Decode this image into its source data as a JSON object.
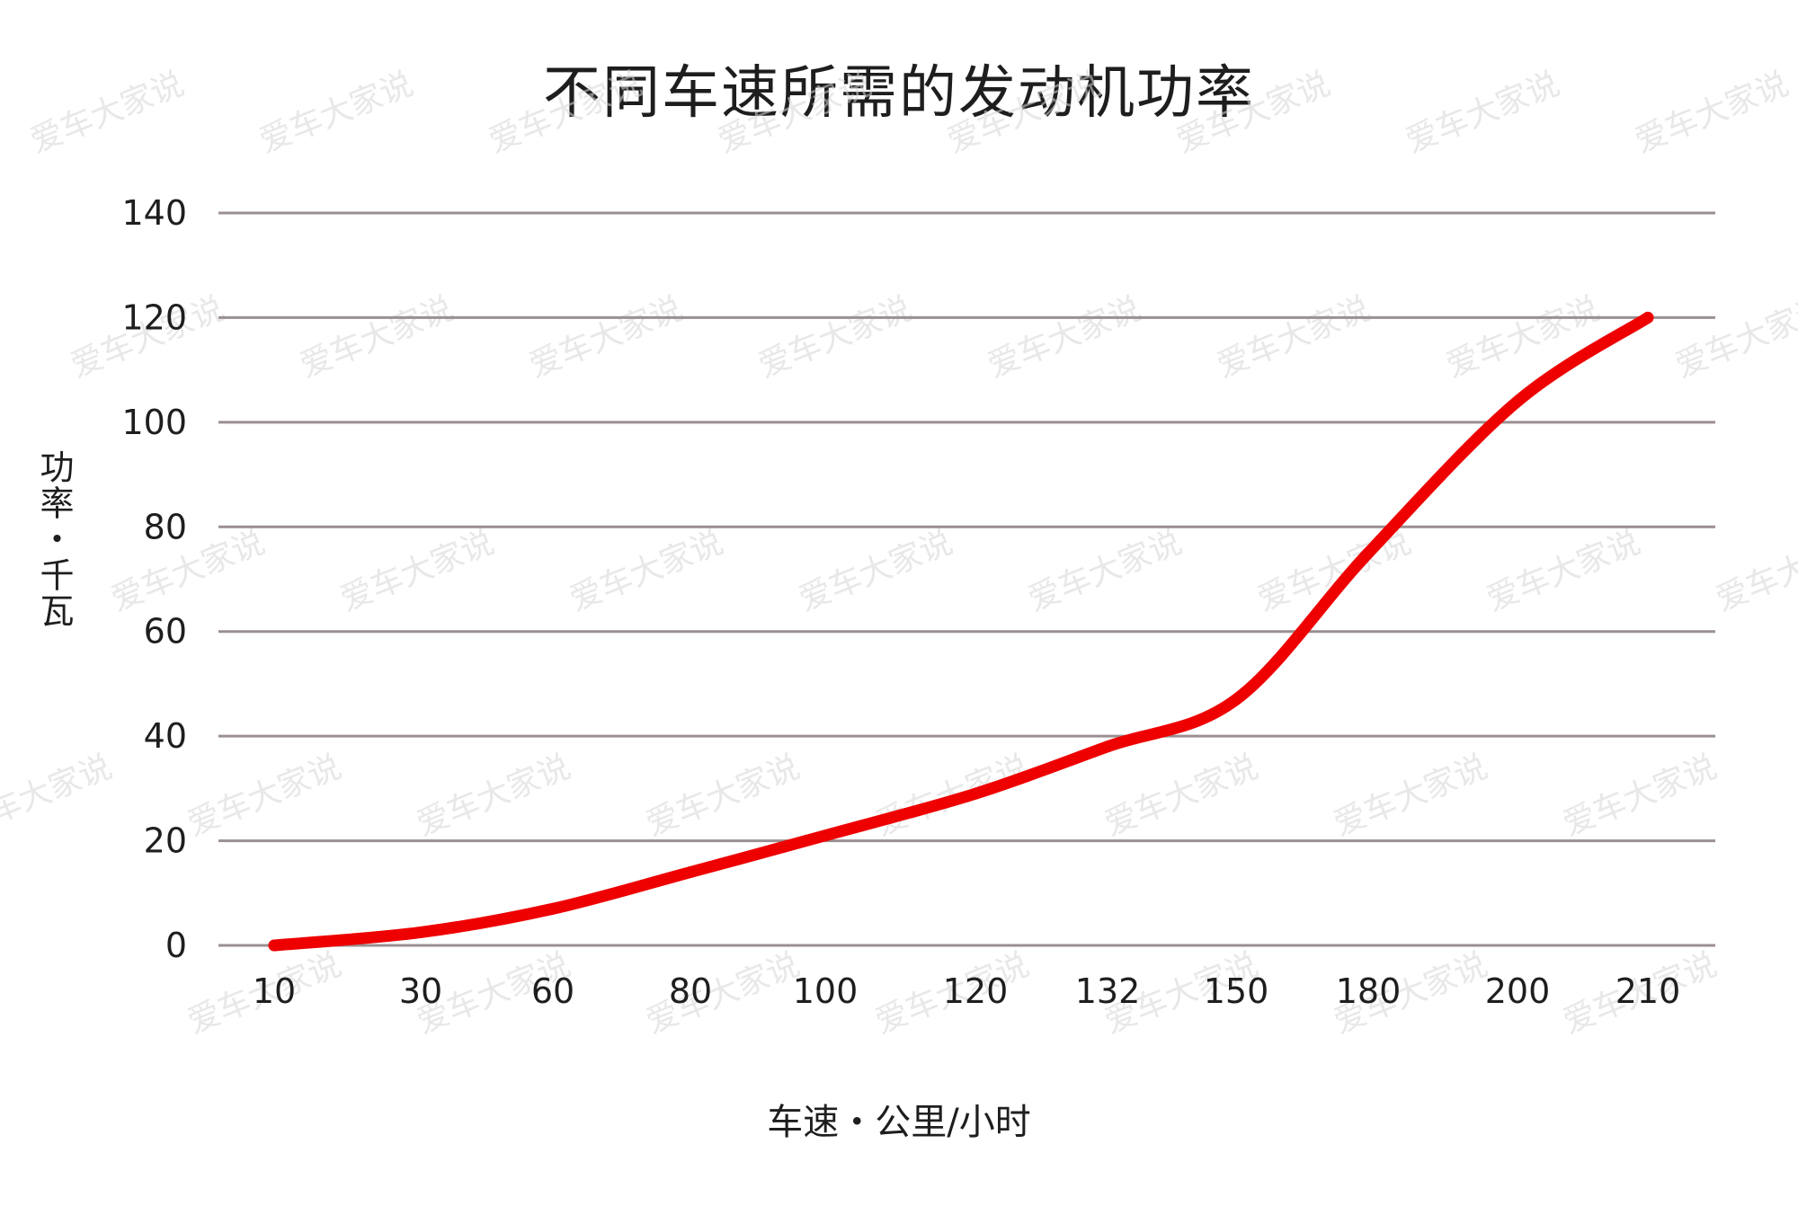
{
  "watermark": "爱车大家说",
  "colors": {
    "line": "#ee0000",
    "grid": "#9a8f91",
    "text": "#1e1e1e"
  },
  "chart_data": {
    "type": "line",
    "title": "不同车速所需的发动机功率",
    "xlabel": "车速・公里/小时",
    "ylabel": "功率・千瓦",
    "categories": [
      "10",
      "30",
      "60",
      "80",
      "100",
      "120",
      "132",
      "150",
      "180",
      "200",
      "210"
    ],
    "yticks": [
      0,
      20,
      40,
      60,
      80,
      100,
      120,
      140
    ],
    "ylim": [
      0,
      140
    ],
    "grid": true,
    "legend": "none",
    "series": [
      {
        "values": [
          0,
          2.5,
          7,
          14,
          21,
          29,
          38,
          47,
          75,
          104,
          120
        ]
      }
    ]
  }
}
